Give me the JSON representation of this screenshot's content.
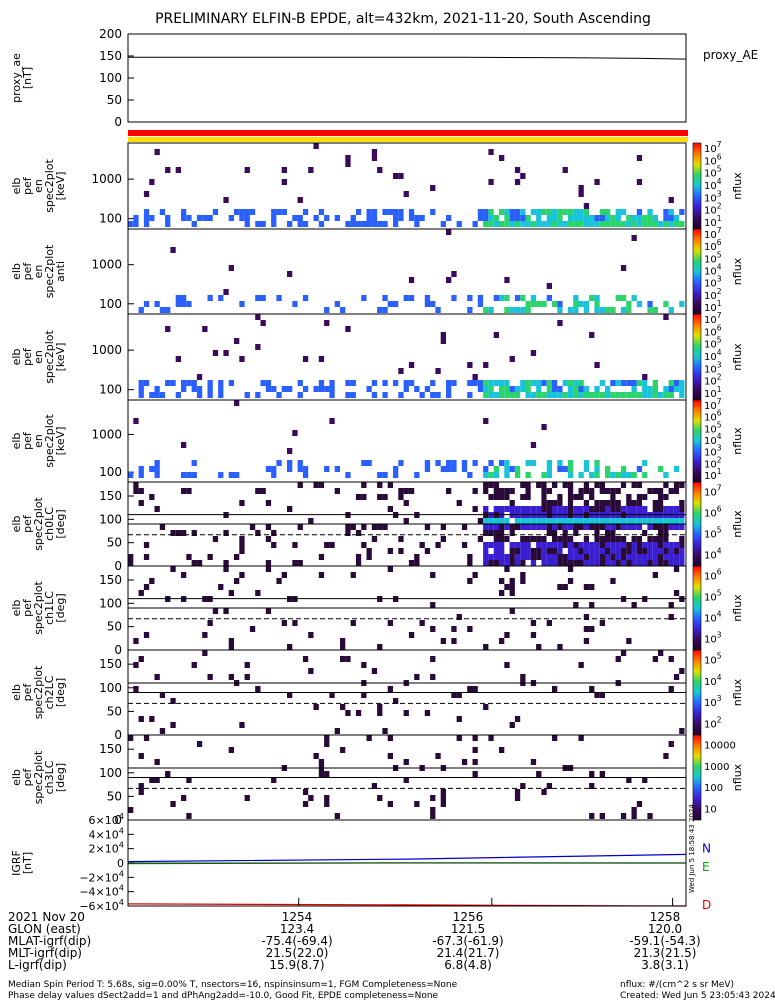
{
  "title": "PRELIMINARY ELFIN-B EPDE, alt=432km, 2021-11-20, South Ascending",
  "colors": {
    "line": "#000000",
    "bar_red": "#ff0000",
    "bar_yellow": "#ffdd00",
    "igrf_N": "#0000cc",
    "igrf_E": "#00aa00",
    "igrf_D": "#dd0000"
  },
  "chart_data": {
    "type": "heatmap",
    "x_range": [
      "12:52:30",
      "12:58:10"
    ],
    "x_tick_labels": [
      "1254",
      "1256",
      "1258"
    ],
    "panels": [
      {
        "id": "proxy_ae",
        "type": "line",
        "ylabel": [
          "proxy_ae",
          "[nT]"
        ],
        "legend": "proxy_AE",
        "ylim": [
          0,
          200
        ],
        "yticks": [
          0,
          50,
          100,
          150,
          200
        ],
        "x": [
          0,
          0.2,
          0.4,
          0.6,
          0.8,
          0.9,
          1.0
        ],
        "values": [
          147,
          147,
          147,
          147,
          146,
          145,
          143
        ]
      },
      {
        "id": "spec_en",
        "type": "heatmap",
        "ylabel": [
          "elb",
          "pef",
          "en",
          "spec2plot",
          "[keV]"
        ],
        "yticks": [
          "1000",
          "100"
        ],
        "log": true,
        "colorbar": {
          "label": "nflux",
          "ticks": [
            "10^1",
            "10^2",
            "10^3",
            "10^4",
            "10^5",
            "10^6",
            "10^7"
          ]
        }
      },
      {
        "id": "spec_anti",
        "type": "heatmap",
        "ylabel": [
          "elb",
          "pef",
          "en",
          "spec2plot",
          "anti"
        ],
        "yticks": [
          "1000",
          "100"
        ],
        "log": true,
        "colorbar": {
          "label": "nflux",
          "ticks": [
            "10^1",
            "10^2",
            "10^3",
            "10^4",
            "10^5",
            "10^6",
            "10^7"
          ]
        }
      },
      {
        "id": "spec_perp",
        "type": "heatmap",
        "ylabel": [
          "elb",
          "pef",
          "en",
          "spec2plot",
          "[keV]"
        ],
        "yticks": [
          "1000",
          "100"
        ],
        "log": true,
        "colorbar": {
          "label": "nflux",
          "ticks": [
            "10^1",
            "10^2",
            "10^3",
            "10^4",
            "10^5",
            "10^6",
            "10^7"
          ]
        }
      },
      {
        "id": "spec_para",
        "type": "heatmap",
        "ylabel": [
          "elb",
          "pef",
          "en",
          "spec2plot",
          "[keV]"
        ],
        "yticks": [
          "1000",
          "100"
        ],
        "log": true,
        "colorbar": {
          "label": "nflux",
          "ticks": [
            "10^1",
            "10^2",
            "10^3",
            "10^4",
            "10^5",
            "10^6",
            "10^7"
          ]
        }
      },
      {
        "id": "pa_ch0",
        "type": "heatmap",
        "ylabel": [
          "elb",
          "pef",
          "spec2plot",
          "ch0LC",
          "[deg]"
        ],
        "ylim": [
          0,
          180
        ],
        "yticks": [
          "150",
          "100",
          "50",
          "0"
        ],
        "colorbar": {
          "label": "nflux",
          "ticks": [
            "10^4",
            "10^5",
            "10^6",
            "10^7"
          ]
        }
      },
      {
        "id": "pa_ch1",
        "type": "heatmap",
        "ylabel": [
          "elb",
          "pef",
          "spec2plot",
          "ch1LC",
          "[deg]"
        ],
        "ylim": [
          0,
          180
        ],
        "yticks": [
          "150",
          "100",
          "50",
          "0"
        ],
        "colorbar": {
          "label": "nflux",
          "ticks": [
            "10^3",
            "10^4",
            "10^5",
            "10^6"
          ]
        }
      },
      {
        "id": "pa_ch2",
        "type": "heatmap",
        "ylabel": [
          "elb",
          "pef",
          "spec2plot",
          "ch2LC",
          "[deg]"
        ],
        "ylim": [
          0,
          180
        ],
        "yticks": [
          "150",
          "100",
          "50",
          "0"
        ],
        "colorbar": {
          "label": "nflux",
          "ticks": [
            "10^2",
            "10^3",
            "10^4",
            "10^5"
          ]
        }
      },
      {
        "id": "pa_ch3",
        "type": "heatmap",
        "ylabel": [
          "elb",
          "pef",
          "spec2plot",
          "ch3LC",
          "[deg]"
        ],
        "ylim": [
          0,
          180
        ],
        "yticks": [
          "150",
          "100",
          "50",
          "0"
        ],
        "colorbar": {
          "label": "nflux",
          "ticks": [
            "10",
            "100",
            "1000",
            "10000"
          ]
        }
      },
      {
        "id": "igrf",
        "type": "line",
        "ylabel": [
          "IGRF",
          "[nT]"
        ],
        "ylim": [
          -60000,
          60000
        ],
        "yticks": [
          "6×10^4",
          "4×10^4",
          "2×10^4",
          "0",
          "−2×10^4",
          "−4×10^4",
          "−6×10^4"
        ],
        "series": [
          {
            "name": "N",
            "x": [
              0,
              0.5,
              1.0
            ],
            "values": [
              2000,
              5500,
              12000
            ]
          },
          {
            "name": "E",
            "x": [
              0,
              0.5,
              1.0
            ],
            "values": [
              -1000,
              300,
              0
            ]
          },
          {
            "name": "D",
            "x": [
              0,
              0.5,
              1.0
            ],
            "values": [
              -57000,
              -58500,
              -60000
            ]
          }
        ]
      }
    ]
  },
  "side_note": "Wed Jun  5 18:58:43 2024",
  "orbit_table": {
    "rows": [
      {
        "label": "2021 Nov 20",
        "values": [
          "1254",
          "1256",
          "1258"
        ]
      },
      {
        "label": "GLON (east)",
        "values": [
          "123.4",
          "121.5",
          "120.0"
        ]
      },
      {
        "label": "MLAT-igrf(dip)",
        "values": [
          "-75.4(-69.4)",
          "-67.3(-61.9)",
          "-59.1(-54.3)"
        ]
      },
      {
        "label": "MLT-igrf(dip)",
        "values": [
          "21.5(22.0)",
          "21.4(21.7)",
          "21.3(21.5)"
        ]
      },
      {
        "label": "L-igrf(dip)",
        "values": [
          "15.9(8.7)",
          "6.8(4.8)",
          "3.8(3.1)"
        ]
      }
    ]
  },
  "footer": {
    "left1": "Median Spin Period T: 5.68s, sig=0.00% T, nsectors=16, nspinsinsum=1, FGM Completeness=None",
    "left2": "Phase delay values dSect2add=1 and dPhAng2add=-10.0, Good Fit, EPDE completeness=None",
    "right1": "nflux: #/(cm^2 s sr MeV)",
    "right2": "Created: Wed Jun  5 23:05:43 2024"
  }
}
